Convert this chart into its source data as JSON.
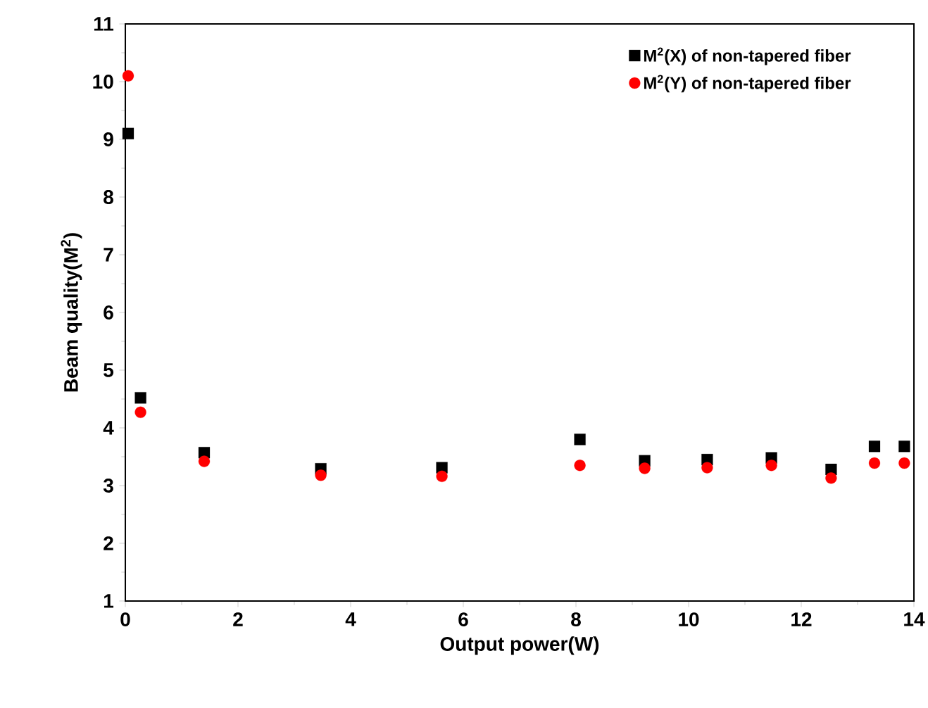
{
  "chart_data": {
    "type": "scatter",
    "xlabel": "Output power(W)",
    "ylabel": "Beam quality(M$^{2}$)",
    "x": [
      0.05,
      0.27,
      1.4,
      3.47,
      5.62,
      8.07,
      9.22,
      10.33,
      11.47,
      12.53,
      13.3,
      13.83
    ],
    "series": [
      {
        "name": "M$^{2}$(X) of non-tapered fiber",
        "color": "#000000",
        "marker": "square",
        "values": [
          9.1,
          4.52,
          3.57,
          3.29,
          3.31,
          3.8,
          3.43,
          3.45,
          3.48,
          3.28,
          3.68,
          3.68
        ]
      },
      {
        "name": "M$^{2}$(Y) of non-tapered fiber",
        "color": "#ff0000",
        "marker": "circle",
        "values": [
          10.1,
          4.27,
          3.42,
          3.18,
          3.16,
          3.35,
          3.3,
          3.31,
          3.35,
          3.13,
          3.39,
          3.39
        ]
      }
    ],
    "xlim": [
      0,
      14
    ],
    "ylim": [
      1,
      11
    ],
    "xticks": [
      0,
      2,
      4,
      6,
      8,
      10,
      12,
      14
    ],
    "yticks": [
      1,
      2,
      3,
      4,
      5,
      6,
      7,
      8,
      9,
      10,
      11
    ],
    "grid": false,
    "legend": "top right"
  }
}
